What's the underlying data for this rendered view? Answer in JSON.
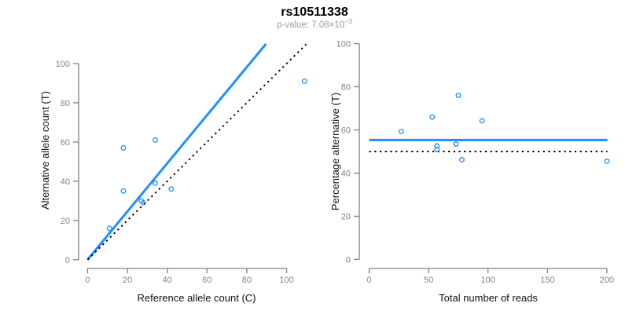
{
  "header": {
    "title": "rs10511338",
    "pvalue_base": "p-value: 7.08×10",
    "pvalue_exponent": "−3"
  },
  "style": {
    "accent_blue": "#1E90FF",
    "dotted_line_color": "#000000",
    "axis_color": "#808080",
    "tick_label_color": "#848484",
    "axis_title_color": "#111111",
    "title_color": "#000000",
    "subtitle_color": "#9b9b9b",
    "background": "#ffffff"
  },
  "chart_data": [
    {
      "type": "scatter",
      "panel": "left",
      "xlabel": "Reference allele count (C)",
      "ylabel": "Alternative allele count (T)",
      "xlim": [
        -4.5,
        114
      ],
      "ylim": [
        -4.5,
        116
      ],
      "xticks": [
        0,
        20,
        40,
        60,
        80,
        100
      ],
      "yticks": [
        0,
        20,
        40,
        60,
        80,
        100
      ],
      "grid": false,
      "marker": "open-circle",
      "points": [
        [
          11,
          16
        ],
        [
          18,
          35
        ],
        [
          18,
          57
        ],
        [
          27,
          30
        ],
        [
          28,
          29
        ],
        [
          34,
          39
        ],
        [
          34,
          61
        ],
        [
          42,
          36
        ],
        [
          109,
          91
        ]
      ],
      "lines": [
        {
          "name": "fitted-proportion-line",
          "style": "solid",
          "color": "#1E90FF",
          "width": 3,
          "x1": 0,
          "y1": 0,
          "x2": 89.6,
          "y2": 110
        },
        {
          "name": "identity-line",
          "style": "dotted",
          "color": "#000000",
          "width": 2,
          "x1": 0,
          "y1": 0,
          "x2": 110,
          "y2": 110
        }
      ]
    },
    {
      "type": "scatter",
      "panel": "right",
      "xlabel": "Total number of reads",
      "ylabel": "Percentage alternative (T)",
      "xlim": [
        -8.3,
        208.7
      ],
      "ylim": [
        -4.2,
        104.2
      ],
      "xticks": [
        0,
        50,
        100,
        150,
        200
      ],
      "yticks": [
        0,
        20,
        40,
        60,
        80,
        100
      ],
      "grid": false,
      "marker": "open-circle",
      "points": [
        [
          27,
          59.3
        ],
        [
          53,
          66.0
        ],
        [
          57,
          52.6
        ],
        [
          57,
          50.9
        ],
        [
          73,
          53.4
        ],
        [
          75,
          76.0
        ],
        [
          78,
          46.2
        ],
        [
          95,
          64.2
        ],
        [
          200,
          45.5
        ]
      ],
      "lines": [
        {
          "name": "mean-percentage-line",
          "style": "solid",
          "color": "#1E90FF",
          "width": 3,
          "x1": 0,
          "y1": 55.3,
          "x2": 200.5,
          "y2": 55.3
        },
        {
          "name": "null-50pct-line",
          "style": "dotted",
          "color": "#000000",
          "width": 2,
          "x1": 0,
          "y1": 50,
          "x2": 200.5,
          "y2": 50
        }
      ]
    }
  ]
}
